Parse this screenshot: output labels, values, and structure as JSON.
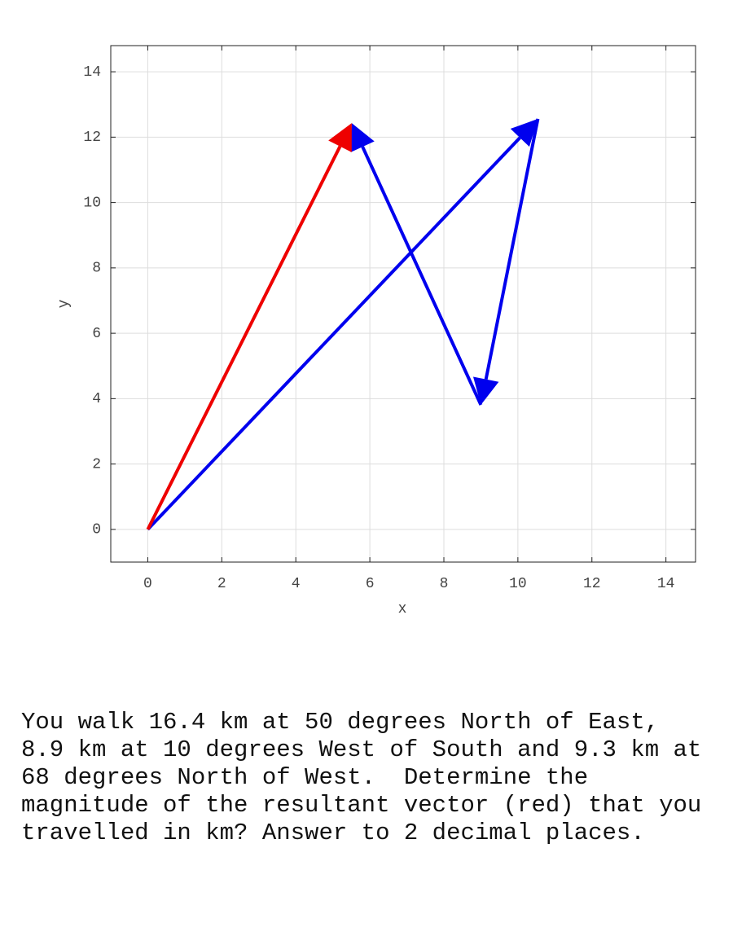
{
  "chart_data": {
    "type": "vector",
    "xlabel": "x",
    "ylabel": "y",
    "xlim": [
      -1,
      14.8
    ],
    "ylim": [
      -1,
      14.8
    ],
    "xticks": [
      0,
      2,
      4,
      6,
      8,
      10,
      12,
      14
    ],
    "yticks": [
      0,
      2,
      4,
      6,
      8,
      10,
      12,
      14
    ],
    "grid": true,
    "vectors": [
      {
        "color": "#0000ee",
        "x": [
          0,
          10.54
        ],
        "y": [
          0,
          12.56
        ]
      },
      {
        "color": "#0000ee",
        "x": [
          10.54,
          9.0
        ],
        "y": [
          12.56,
          3.81
        ]
      },
      {
        "color": "#0000ee",
        "x": [
          9.0,
          5.51
        ],
        "y": [
          3.81,
          12.43
        ]
      },
      {
        "color": "#ee0000",
        "x": [
          0,
          5.51
        ],
        "y": [
          0,
          12.43
        ]
      }
    ]
  },
  "question": [
    "You walk 16.4 km at 50 degrees North of East,",
    "8.9 km at 10 degrees West of South and 9.3 km at",
    "68 degrees North of West.  Determine the",
    "magnitude of the resultant vector (red) that you",
    "travelled in km? Answer to 2 decimal places."
  ]
}
